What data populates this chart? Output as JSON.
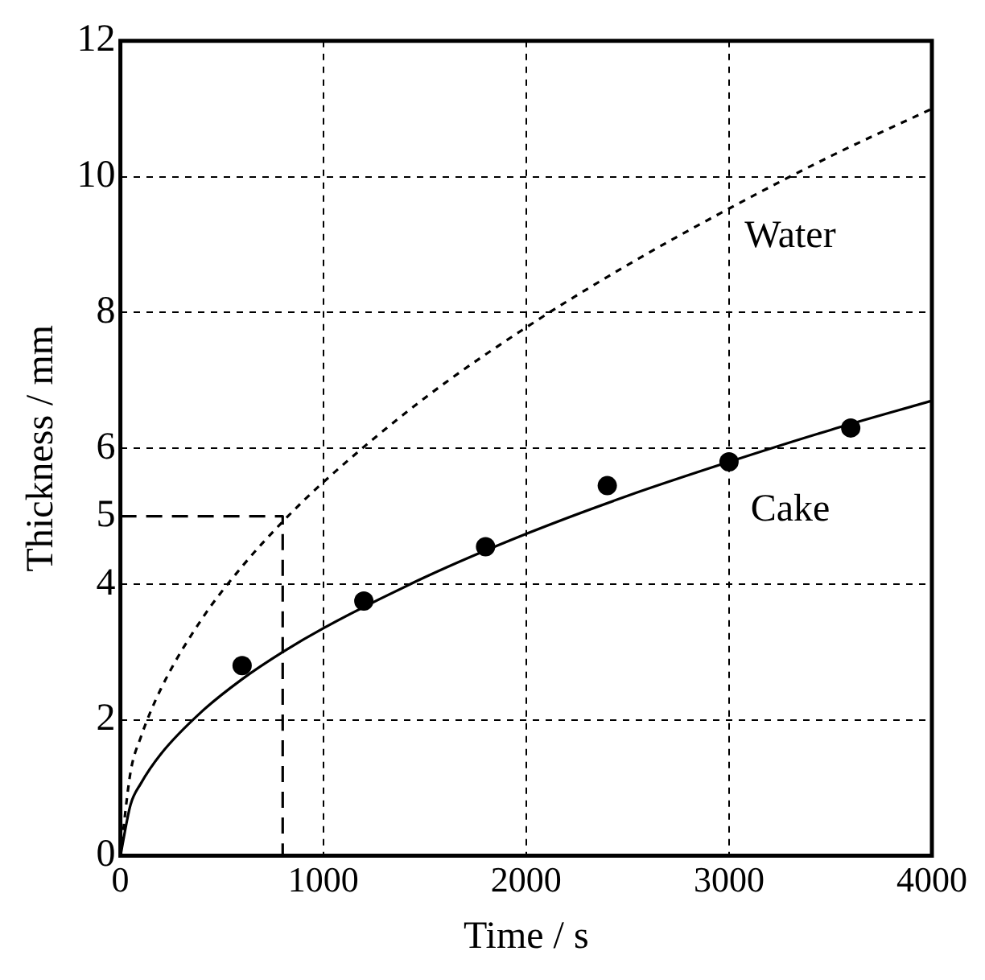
{
  "chart_data": {
    "type": "line",
    "xlabel": "Time / s",
    "ylabel": "Thickness / mm",
    "xlim": [
      0,
      4000
    ],
    "xticks": [
      0,
      1000,
      2000,
      3000,
      4000
    ],
    "ylim": [
      0,
      12
    ],
    "yticks": [
      0,
      2,
      4,
      {
        "value": 5,
        "label": "5"
      },
      6,
      8,
      10,
      12
    ],
    "grid": true,
    "legend": false,
    "series": [
      {
        "name": "Water",
        "type": "line",
        "line_style": "dotted",
        "marker": "none",
        "color": "#000000",
        "x": [
          0,
          50,
          100,
          200,
          400,
          600,
          800,
          1000,
          1500,
          2000,
          2500,
          3000,
          3500,
          4000
        ],
        "values": [
          0,
          1.23,
          1.74,
          2.46,
          3.48,
          4.26,
          4.92,
          5.5,
          6.74,
          7.78,
          8.7,
          9.53,
          10.3,
          11.0
        ]
      },
      {
        "name": "Cake",
        "type": "line",
        "line_style": "solid",
        "marker": "none",
        "color": "#000000",
        "x": [
          0,
          50,
          100,
          200,
          400,
          600,
          800,
          1000,
          1500,
          2000,
          2500,
          3000,
          3500,
          4000
        ],
        "values": [
          0,
          0.75,
          1.06,
          1.5,
          2.12,
          2.6,
          3.0,
          3.35,
          4.1,
          4.74,
          5.3,
          5.8,
          6.27,
          6.7
        ]
      },
      {
        "type": "scatter",
        "marker": "circle",
        "color": "#000000",
        "x": [
          600,
          1200,
          1800,
          2400,
          3000,
          3600
        ],
        "values": [
          2.8,
          3.75,
          4.55,
          5.45,
          5.8,
          6.3
        ]
      },
      {
        "type": "line",
        "line_style": "dashed",
        "marker": "none",
        "color": "#000000",
        "x": [
          0,
          800,
          800
        ],
        "values": [
          5,
          5,
          0
        ]
      }
    ]
  }
}
